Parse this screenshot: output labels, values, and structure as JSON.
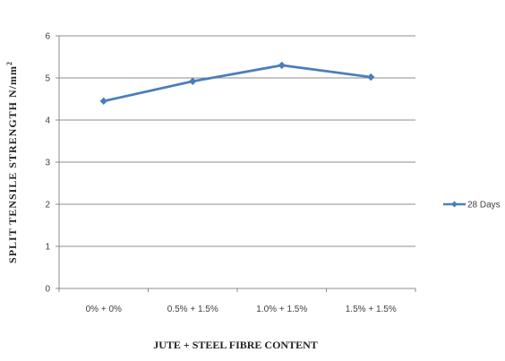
{
  "chart_data": {
    "type": "line",
    "categories": [
      "0% + 0%",
      "0.5% + 1.5%",
      "1.0% + 1.5%",
      "1.5% + 1.5%"
    ],
    "series": [
      {
        "name": "28 Days",
        "values": [
          4.45,
          4.92,
          5.3,
          5.02
        ],
        "color": "#4a7ebb"
      }
    ],
    "xlabel": "JUTE + STEEL FIBRE CONTENT",
    "ylabel_main": "SPLIT TENSILE STRENGTH N/mm",
    "ylabel_superscript": "2",
    "ylim": [
      0,
      6
    ],
    "yticks": [
      "0",
      "1",
      "2",
      "3",
      "4",
      "5",
      "6"
    ],
    "grid": true,
    "legend_position": "right"
  }
}
